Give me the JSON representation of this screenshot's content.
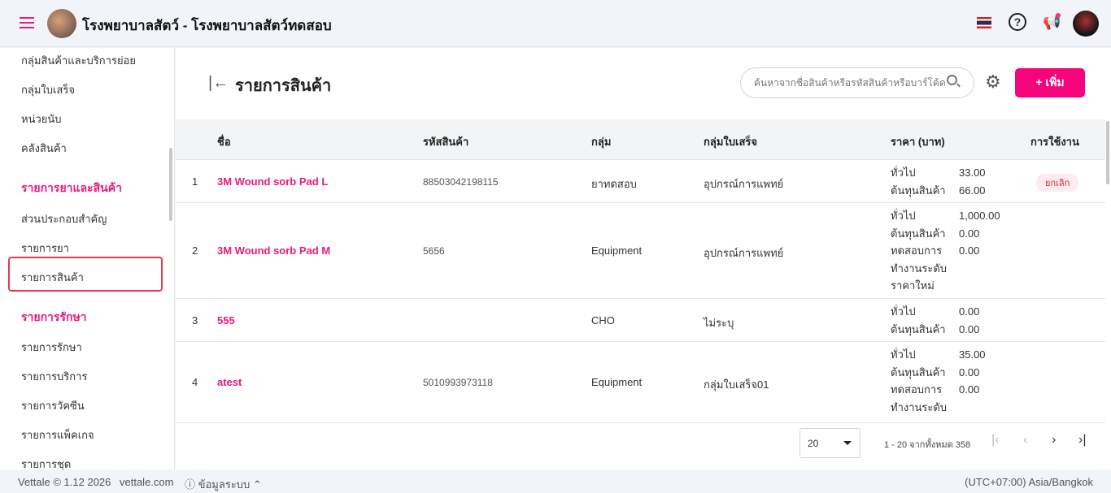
{
  "app": {
    "title": "โรงพยาบาลสัตว์ - โรงพยาบาลสัตว์ทดสอบ"
  },
  "sidebar": {
    "items_top": [
      "กลุ่มสินค้าและบริการย่อย",
      "กลุ่มใบเสร็จ",
      "หน่วยนับ",
      "คลังสินค้า"
    ],
    "section1": "รายการยาและสินค้า",
    "items_mid": [
      "ส่วนประกอบสำคัญ",
      "รายการยา",
      "รายการสินค้า"
    ],
    "section2": "รายการรักษา",
    "items_bottom": [
      "รายการรักษา",
      "รายการบริการ",
      "รายการวัคซีน",
      "รายการแพ็คเกจ",
      "รายการชุด"
    ]
  },
  "main": {
    "title": "รายการสินค้า",
    "search_placeholder": "ค้นหาจากชื่อสินค้าหรือรหัสสินค้าหรือบาร์โค้ด",
    "add_label": "+ เพิ่ม"
  },
  "table": {
    "headers": [
      "ชื่อ",
      "รหัสสินค้า",
      "กลุ่ม",
      "กลุ่มใบเสร็จ",
      "ราคา (บาท)",
      "การใช้งาน"
    ],
    "rows": [
      {
        "index": "1",
        "name": "3M Wound sorb Pad L",
        "code": "88503042198115",
        "group": "ยาทดสอบ",
        "receipt_group": "อุปกรณ์การแพทย์",
        "price_labels": "ทั่วไป\nต้นทุนสินค้า",
        "price_values": "33.00\n66.00",
        "status": "ยกเลิก"
      },
      {
        "index": "2",
        "name": "3M Wound sorb Pad M",
        "code": "5656",
        "group": "Equipment",
        "receipt_group": "อุปกรณ์การแพทย์",
        "price_labels": "ทั่วไป\nต้นทุนสินค้า\nทดสอบการทำงานระดับราคาใหม่",
        "price_values": "1,000.00\n0.00\n0.00",
        "status": ""
      },
      {
        "index": "3",
        "name": "555",
        "code": "",
        "group": "CHO",
        "receipt_group": "ไม่ระบุ",
        "price_labels": "ทั่วไป\nต้นทุนสินค้า",
        "price_values": "0.00\n0.00",
        "status": ""
      },
      {
        "index": "4",
        "name": "atest",
        "code": "5010993973118",
        "group": "Equipment",
        "receipt_group": "กลุ่มใบเสร็จ01",
        "price_labels": "ทั่วไป\nต้นทุนสินค้า\nทดสอบการทำงานระดับ",
        "price_values": "35.00\n0.00\n0.00",
        "status": ""
      }
    ]
  },
  "pagination": {
    "page_size": "20",
    "info": "1 - 20 จากทั้งหมด 358"
  },
  "footer": {
    "copyright": "Vettale © 1.12 2026",
    "site": "vettale.com",
    "system_info": "ⓘ ข้อมูลระบบ ⌃",
    "timezone": "(UTC+07:00) Asia/Bangkok"
  },
  "colors": {
    "accent": "#f5047b",
    "cancel_badge": "#d3202f"
  }
}
